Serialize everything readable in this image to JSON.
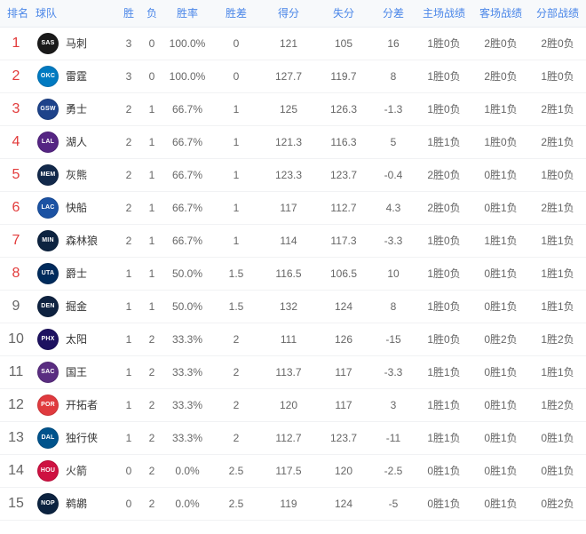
{
  "colors": {
    "header_text": "#4a86e8",
    "header_bg": "#f7f9fb",
    "rank_highlight": "#e23b3b",
    "rank_normal": "#666666",
    "row_border": "#f1f2f4"
  },
  "table": {
    "columns": [
      {
        "key": "rank",
        "label": "排名"
      },
      {
        "key": "team",
        "label": "球队"
      },
      {
        "key": "wins",
        "label": "胜"
      },
      {
        "key": "losses",
        "label": "负"
      },
      {
        "key": "pct",
        "label": "胜率"
      },
      {
        "key": "gb",
        "label": "胜差"
      },
      {
        "key": "pf",
        "label": "得分"
      },
      {
        "key": "pa",
        "label": "失分"
      },
      {
        "key": "diff",
        "label": "分差"
      },
      {
        "key": "home",
        "label": "主场战绩"
      },
      {
        "key": "away",
        "label": "客场战绩"
      },
      {
        "key": "division",
        "label": "分部战绩"
      }
    ],
    "rows": [
      {
        "rank": "1",
        "highlight": true,
        "team": "马刺",
        "logo": {
          "abbr": "SAS",
          "bg": "#1a1a1a"
        },
        "wins": "3",
        "losses": "0",
        "pct": "100.0%",
        "gb": "0",
        "pf": "121",
        "pa": "105",
        "diff": "16",
        "home": "1胜0负",
        "away": "2胜0负",
        "division": "2胜0负"
      },
      {
        "rank": "2",
        "highlight": true,
        "team": "雷霆",
        "logo": {
          "abbr": "OKC",
          "bg": "#007ac1"
        },
        "wins": "3",
        "losses": "0",
        "pct": "100.0%",
        "gb": "0",
        "pf": "127.7",
        "pa": "119.7",
        "diff": "8",
        "home": "1胜0负",
        "away": "2胜0负",
        "division": "1胜0负"
      },
      {
        "rank": "3",
        "highlight": true,
        "team": "勇士",
        "logo": {
          "abbr": "GSW",
          "bg": "#1d428a"
        },
        "wins": "2",
        "losses": "1",
        "pct": "66.7%",
        "gb": "1",
        "pf": "125",
        "pa": "126.3",
        "diff": "-1.3",
        "home": "1胜0负",
        "away": "1胜1负",
        "division": "2胜1负"
      },
      {
        "rank": "4",
        "highlight": true,
        "team": "湖人",
        "logo": {
          "abbr": "LAL",
          "bg": "#552583"
        },
        "wins": "2",
        "losses": "1",
        "pct": "66.7%",
        "gb": "1",
        "pf": "121.3",
        "pa": "116.3",
        "diff": "5",
        "home": "1胜1负",
        "away": "1胜0负",
        "division": "2胜1负"
      },
      {
        "rank": "5",
        "highlight": true,
        "team": "灰熊",
        "logo": {
          "abbr": "MEM",
          "bg": "#12294b"
        },
        "wins": "2",
        "losses": "1",
        "pct": "66.7%",
        "gb": "1",
        "pf": "123.3",
        "pa": "123.7",
        "diff": "-0.4",
        "home": "2胜0负",
        "away": "0胜1负",
        "division": "1胜0负"
      },
      {
        "rank": "6",
        "highlight": true,
        "team": "快船",
        "logo": {
          "abbr": "LAC",
          "bg": "#1b52a3"
        },
        "wins": "2",
        "losses": "1",
        "pct": "66.7%",
        "gb": "1",
        "pf": "117",
        "pa": "112.7",
        "diff": "4.3",
        "home": "2胜0负",
        "away": "0胜1负",
        "division": "2胜1负"
      },
      {
        "rank": "7",
        "highlight": true,
        "team": "森林狼",
        "logo": {
          "abbr": "MIN",
          "bg": "#0c2340"
        },
        "wins": "2",
        "losses": "1",
        "pct": "66.7%",
        "gb": "1",
        "pf": "114",
        "pa": "117.3",
        "diff": "-3.3",
        "home": "1胜0负",
        "away": "1胜1负",
        "division": "1胜1负"
      },
      {
        "rank": "8",
        "highlight": true,
        "team": "爵士",
        "logo": {
          "abbr": "UTA",
          "bg": "#002b5c"
        },
        "wins": "1",
        "losses": "1",
        "pct": "50.0%",
        "gb": "1.5",
        "pf": "116.5",
        "pa": "106.5",
        "diff": "10",
        "home": "1胜0负",
        "away": "0胜1负",
        "division": "1胜1负"
      },
      {
        "rank": "9",
        "highlight": false,
        "team": "掘金",
        "logo": {
          "abbr": "DEN",
          "bg": "#0e2240"
        },
        "wins": "1",
        "losses": "1",
        "pct": "50.0%",
        "gb": "1.5",
        "pf": "132",
        "pa": "124",
        "diff": "8",
        "home": "1胜0负",
        "away": "0胜1负",
        "division": "1胜1负"
      },
      {
        "rank": "10",
        "highlight": false,
        "team": "太阳",
        "logo": {
          "abbr": "PHX",
          "bg": "#1d1160"
        },
        "wins": "1",
        "losses": "2",
        "pct": "33.3%",
        "gb": "2",
        "pf": "111",
        "pa": "126",
        "diff": "-15",
        "home": "1胜0负",
        "away": "0胜2负",
        "division": "1胜2负"
      },
      {
        "rank": "11",
        "highlight": false,
        "team": "国王",
        "logo": {
          "abbr": "SAC",
          "bg": "#5a2d81"
        },
        "wins": "1",
        "losses": "2",
        "pct": "33.3%",
        "gb": "2",
        "pf": "113.7",
        "pa": "117",
        "diff": "-3.3",
        "home": "1胜1负",
        "away": "0胜1负",
        "division": "1胜1负"
      },
      {
        "rank": "12",
        "highlight": false,
        "team": "开拓者",
        "logo": {
          "abbr": "POR",
          "bg": "#e03a3e"
        },
        "wins": "1",
        "losses": "2",
        "pct": "33.3%",
        "gb": "2",
        "pf": "120",
        "pa": "117",
        "diff": "3",
        "home": "1胜1负",
        "away": "0胜1负",
        "division": "1胜2负"
      },
      {
        "rank": "13",
        "highlight": false,
        "team": "独行侠",
        "logo": {
          "abbr": "DAL",
          "bg": "#00538c"
        },
        "wins": "1",
        "losses": "2",
        "pct": "33.3%",
        "gb": "2",
        "pf": "112.7",
        "pa": "123.7",
        "diff": "-11",
        "home": "1胜1负",
        "away": "0胜1负",
        "division": "0胜1负"
      },
      {
        "rank": "14",
        "highlight": false,
        "team": "火箭",
        "logo": {
          "abbr": "HOU",
          "bg": "#ce1141"
        },
        "wins": "0",
        "losses": "2",
        "pct": "0.0%",
        "gb": "2.5",
        "pf": "117.5",
        "pa": "120",
        "diff": "-2.5",
        "home": "0胜1负",
        "away": "0胜1负",
        "division": "0胜1负"
      },
      {
        "rank": "15",
        "highlight": false,
        "team": "鹈鹕",
        "logo": {
          "abbr": "NOP",
          "bg": "#0c2340"
        },
        "wins": "0",
        "losses": "2",
        "pct": "0.0%",
        "gb": "2.5",
        "pf": "119",
        "pa": "124",
        "diff": "-5",
        "home": "0胜1负",
        "away": "0胜1负",
        "division": "0胜2负"
      }
    ]
  }
}
